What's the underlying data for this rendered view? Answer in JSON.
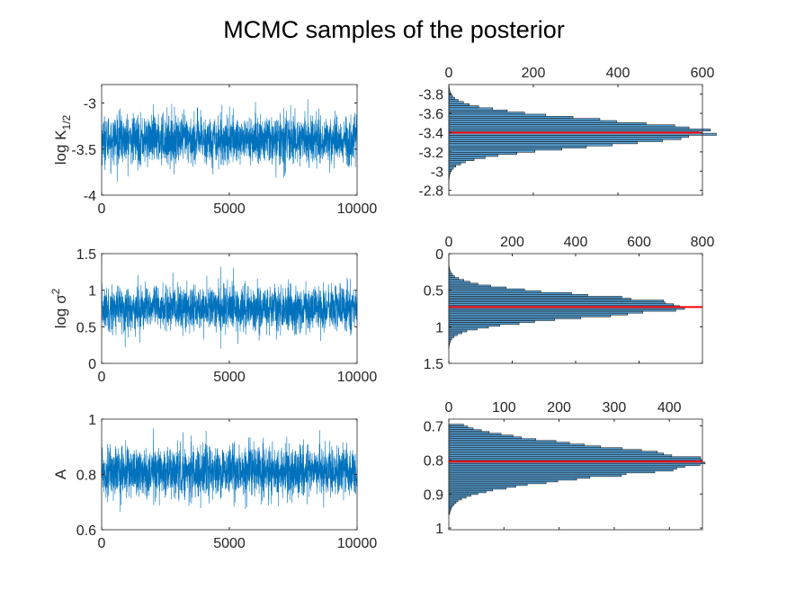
{
  "figure": {
    "title": "MCMC samples of the posterior",
    "colors": {
      "trace": "#0072BD",
      "hist_fill": "#5aa2d4",
      "hist_edge": "#000000",
      "mean_line": "#ff0000",
      "axes": "#262626"
    }
  },
  "chart_data": [
    {
      "type": "line",
      "panel": "trace-logK",
      "ylabel": "log K",
      "ylabel_sub": "1/2",
      "x": [
        0,
        10000
      ],
      "xlim": [
        0,
        10000
      ],
      "ylim": [
        -4,
        -2.8
      ],
      "xticks": [
        "0",
        "5000",
        "10000"
      ],
      "yticks": [
        -4,
        -3.5,
        -3
      ],
      "yticklabels": [
        "-4",
        "-3.5",
        "-3"
      ],
      "series": [
        {
          "n": 10000,
          "mean": -3.4,
          "sd": 0.13,
          "min": -3.9,
          "max": -2.82
        }
      ]
    },
    {
      "type": "line",
      "panel": "trace-logsigma2",
      "ylabel": "log σ",
      "ylabel_sup": "2",
      "x": [
        0,
        10000
      ],
      "xlim": [
        0,
        10000
      ],
      "ylim": [
        0,
        1.5
      ],
      "xticks": [
        "0",
        "5000",
        "10000"
      ],
      "yticks": [
        0,
        0.5,
        1,
        1.5
      ],
      "yticklabels": [
        "0",
        "0.5",
        "1",
        "1.5"
      ],
      "series": [
        {
          "n": 10000,
          "mean": 0.75,
          "sd": 0.15,
          "min": 0.05,
          "max": 1.45
        }
      ]
    },
    {
      "type": "line",
      "panel": "trace-A",
      "ylabel": "A",
      "x": [
        0,
        10000
      ],
      "xlim": [
        0,
        10000
      ],
      "ylim": [
        0.6,
        1
      ],
      "xticks": [
        "0",
        "5000",
        "10000"
      ],
      "yticks": [
        0.6,
        0.8,
        1
      ],
      "yticklabels": [
        "0.6",
        "0.8",
        "1"
      ],
      "series": [
        {
          "n": 10000,
          "mean": 0.81,
          "sd": 0.045,
          "min": 0.64,
          "max": 0.99
        }
      ]
    },
    {
      "type": "bar",
      "panel": "hist-logK",
      "orientation": "horizontal",
      "xlim": [
        0,
        600
      ],
      "xticks": [
        0,
        200,
        400,
        600
      ],
      "xticklabels": [
        "0",
        "200",
        "400",
        "600"
      ],
      "ylim": [
        -3.9,
        -2.75
      ],
      "yticks": [
        -3.8,
        -3.6,
        -3.4,
        -3.2,
        -3,
        -2.8
      ],
      "yticklabels": [
        "-3.8",
        "-3.6",
        "-3.4",
        "-3.2",
        "-3",
        "-2.8"
      ],
      "y_reversed": true,
      "bins": {
        "start": -3.9,
        "end": -2.8,
        "count": 50
      },
      "peak_count": 610,
      "peak_center": -3.4,
      "spread": 0.13,
      "mean_value": -3.4
    },
    {
      "type": "bar",
      "panel": "hist-logsigma2",
      "orientation": "horizontal",
      "xlim": [
        0,
        800
      ],
      "xticks": [
        0,
        200,
        400,
        600,
        800
      ],
      "xticklabels": [
        "0",
        "200",
        "400",
        "600",
        "800"
      ],
      "ylim": [
        0,
        1.5
      ],
      "yticks": [
        0,
        0.5,
        1,
        1.5
      ],
      "yticklabels": [
        "0",
        "0.5",
        "1",
        "1.5"
      ],
      "y_reversed": true,
      "bins": {
        "start": 0.02,
        "end": 1.3,
        "count": 50
      },
      "peak_count": 735,
      "peak_center": 0.72,
      "spread": 0.15,
      "mean_value": 0.73
    },
    {
      "type": "bar",
      "panel": "hist-A",
      "orientation": "horizontal",
      "xlim": [
        0,
        460
      ],
      "xticks": [
        0,
        100,
        200,
        300,
        400
      ],
      "xticklabels": [
        "0",
        "100",
        "200",
        "300",
        "400"
      ],
      "ylim": [
        0.68,
        1.005
      ],
      "yticks": [
        0.7,
        0.8,
        0.9,
        1
      ],
      "yticklabels": [
        "0.7",
        "0.8",
        "0.9",
        "1"
      ],
      "y_reversed": true,
      "bins": {
        "start": 0.695,
        "end": 0.96,
        "count": 50
      },
      "peak_count": 455,
      "peak_center": 0.805,
      "spread": 0.045,
      "mean_value": 0.805
    }
  ]
}
